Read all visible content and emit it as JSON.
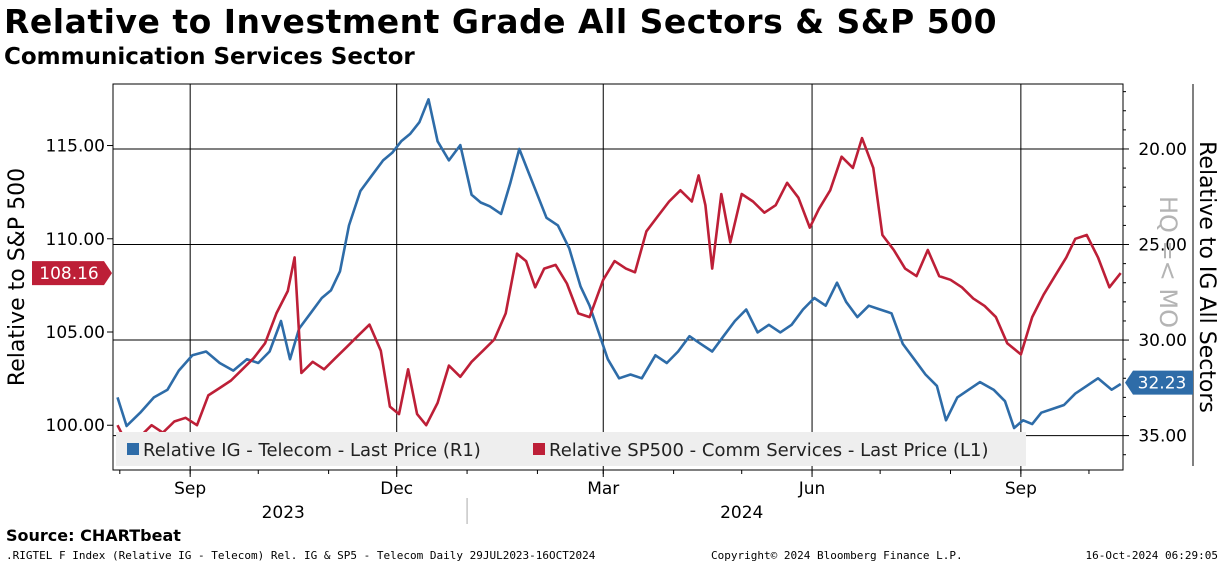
{
  "title": "Relative to Investment Grade All Sectors & S&P 500",
  "subtitle": "Communication Services Sector",
  "source": "Source: CHARTbeat",
  "footer": {
    "left": ".RIGTEL F Index (Relative IG - Telecom) Rel. IG & SP5 - Telecom  Daily 29JUL2023-16OCT2024",
    "center": "Copyright© 2024 Bloomberg Finance L.P.",
    "right": "16-Oct-2024 06:29:05"
  },
  "watermark": "HQ =< MO",
  "colors": {
    "blue": "#2e6ca8",
    "red": "#bd1f37",
    "legend_bg": "#eeeeee"
  },
  "chart_data": {
    "type": "line",
    "x_range": [
      "2023-07-29",
      "2024-10-16"
    ],
    "x_ticks": [
      {
        "label": "Sep",
        "date": "2023-09-01"
      },
      {
        "label": "Dec",
        "date": "2023-12-01"
      },
      {
        "label": "Mar",
        "date": "2024-03-01"
      },
      {
        "label": "Jun",
        "date": "2024-06-01"
      },
      {
        "label": "Sep",
        "date": "2024-09-01"
      }
    ],
    "x_years": [
      {
        "label": "2023",
        "date": "2023-10-12"
      },
      {
        "label": "2024",
        "date": "2024-05-01"
      }
    ],
    "year_divider": "2024-01-01",
    "grid": true,
    "left_axis": {
      "title": "Relative to S&P 500",
      "min": 97.6,
      "max": 118.3,
      "ticks": [
        "100.00",
        "105.00",
        "110.00",
        "115.00"
      ]
    },
    "right_axis": {
      "title": "Relative to IG All Sectors",
      "inverted": true,
      "min": 16.6,
      "max": 36.8,
      "ticks": [
        "20.00",
        "25.00",
        "30.00",
        "35.00"
      ]
    },
    "legend": {
      "position": "bottom-left"
    },
    "series": [
      {
        "name": "Relative IG - Telecom - Last Price (R1)",
        "axis": "right",
        "color": "#2e6ca8",
        "last_label": "32.23",
        "points": [
          [
            "2023-07-31",
            33.0
          ],
          [
            "2023-08-04",
            34.5
          ],
          [
            "2023-08-10",
            33.8
          ],
          [
            "2023-08-16",
            33.0
          ],
          [
            "2023-08-22",
            32.6
          ],
          [
            "2023-08-27",
            31.6
          ],
          [
            "2023-09-02",
            30.8
          ],
          [
            "2023-09-08",
            30.6
          ],
          [
            "2023-09-14",
            31.2
          ],
          [
            "2023-09-20",
            31.6
          ],
          [
            "2023-09-26",
            31.0
          ],
          [
            "2023-10-01",
            31.2
          ],
          [
            "2023-10-06",
            30.6
          ],
          [
            "2023-10-11",
            29.0
          ],
          [
            "2023-10-15",
            31.0
          ],
          [
            "2023-10-19",
            29.4
          ],
          [
            "2023-10-24",
            28.6
          ],
          [
            "2023-10-29",
            27.8
          ],
          [
            "2023-11-02",
            27.4
          ],
          [
            "2023-11-06",
            26.4
          ],
          [
            "2023-11-10",
            24.0
          ],
          [
            "2023-11-15",
            22.2
          ],
          [
            "2023-11-20",
            21.4
          ],
          [
            "2023-11-25",
            20.6
          ],
          [
            "2023-11-29",
            20.2
          ],
          [
            "2023-12-03",
            19.6
          ],
          [
            "2023-12-07",
            19.2
          ],
          [
            "2023-12-11",
            18.6
          ],
          [
            "2023-12-15",
            17.4
          ],
          [
            "2023-12-19",
            19.6
          ],
          [
            "2023-12-24",
            20.6
          ],
          [
            "2023-12-29",
            19.8
          ],
          [
            "2024-01-03",
            22.4
          ],
          [
            "2024-01-07",
            22.8
          ],
          [
            "2024-01-11",
            23.0
          ],
          [
            "2024-01-16",
            23.4
          ],
          [
            "2024-01-20",
            21.8
          ],
          [
            "2024-01-24",
            20.0
          ],
          [
            "2024-01-28",
            21.2
          ],
          [
            "2024-02-01",
            22.4
          ],
          [
            "2024-02-05",
            23.6
          ],
          [
            "2024-02-10",
            24.0
          ],
          [
            "2024-02-15",
            25.2
          ],
          [
            "2024-02-20",
            27.2
          ],
          [
            "2024-02-24",
            28.2
          ],
          [
            "2024-02-28",
            29.6
          ],
          [
            "2024-03-03",
            31.0
          ],
          [
            "2024-03-08",
            32.0
          ],
          [
            "2024-03-13",
            31.8
          ],
          [
            "2024-03-18",
            32.0
          ],
          [
            "2024-03-24",
            30.8
          ],
          [
            "2024-03-29",
            31.2
          ],
          [
            "2024-04-03",
            30.6
          ],
          [
            "2024-04-08",
            29.8
          ],
          [
            "2024-04-13",
            30.2
          ],
          [
            "2024-04-18",
            30.6
          ],
          [
            "2024-04-23",
            29.8
          ],
          [
            "2024-04-28",
            29.0
          ],
          [
            "2024-05-03",
            28.4
          ],
          [
            "2024-05-08",
            29.6
          ],
          [
            "2024-05-13",
            29.2
          ],
          [
            "2024-05-18",
            29.6
          ],
          [
            "2024-05-23",
            29.2
          ],
          [
            "2024-05-28",
            28.4
          ],
          [
            "2024-06-02",
            27.8
          ],
          [
            "2024-06-07",
            28.2
          ],
          [
            "2024-06-12",
            27.0
          ],
          [
            "2024-06-16",
            28.0
          ],
          [
            "2024-06-21",
            28.8
          ],
          [
            "2024-06-26",
            28.2
          ],
          [
            "2024-07-01",
            28.4
          ],
          [
            "2024-07-06",
            28.6
          ],
          [
            "2024-07-11",
            30.2
          ],
          [
            "2024-07-16",
            31.0
          ],
          [
            "2024-07-21",
            31.8
          ],
          [
            "2024-07-26",
            32.4
          ],
          [
            "2024-07-30",
            34.2
          ],
          [
            "2024-08-04",
            33.0
          ],
          [
            "2024-08-09",
            32.6
          ],
          [
            "2024-08-14",
            32.2
          ],
          [
            "2024-08-20",
            32.6
          ],
          [
            "2024-08-25",
            33.2
          ],
          [
            "2024-08-29",
            34.6
          ],
          [
            "2024-09-02",
            34.2
          ],
          [
            "2024-09-06",
            34.4
          ],
          [
            "2024-09-10",
            33.8
          ],
          [
            "2024-09-15",
            33.6
          ],
          [
            "2024-09-20",
            33.4
          ],
          [
            "2024-09-25",
            32.8
          ],
          [
            "2024-09-30",
            32.4
          ],
          [
            "2024-10-05",
            32.0
          ],
          [
            "2024-10-11",
            32.6
          ],
          [
            "2024-10-15",
            32.3
          ]
        ]
      },
      {
        "name": "Relative SP500 - Comm Services - Last Price (L1)",
        "axis": "left",
        "color": "#bd1f37",
        "last_label": "108.16",
        "points": [
          [
            "2023-07-31",
            100.0
          ],
          [
            "2023-08-05",
            98.8
          ],
          [
            "2023-08-10",
            99.4
          ],
          [
            "2023-08-15",
            100.0
          ],
          [
            "2023-08-20",
            99.6
          ],
          [
            "2023-08-25",
            100.2
          ],
          [
            "2023-08-30",
            100.4
          ],
          [
            "2023-09-04",
            100.0
          ],
          [
            "2023-09-09",
            101.6
          ],
          [
            "2023-09-14",
            102.0
          ],
          [
            "2023-09-19",
            102.4
          ],
          [
            "2023-09-24",
            103.0
          ],
          [
            "2023-09-29",
            103.6
          ],
          [
            "2023-10-04",
            104.4
          ],
          [
            "2023-10-09",
            106.0
          ],
          [
            "2023-10-14",
            107.2
          ],
          [
            "2023-10-17",
            109.0
          ],
          [
            "2023-10-20",
            102.8
          ],
          [
            "2023-10-25",
            103.4
          ],
          [
            "2023-10-30",
            103.0
          ],
          [
            "2023-11-04",
            103.6
          ],
          [
            "2023-11-09",
            104.2
          ],
          [
            "2023-11-14",
            104.8
          ],
          [
            "2023-11-19",
            105.4
          ],
          [
            "2023-11-24",
            104.0
          ],
          [
            "2023-11-28",
            101.0
          ],
          [
            "2023-12-02",
            100.6
          ],
          [
            "2023-12-06",
            103.0
          ],
          [
            "2023-12-10",
            100.6
          ],
          [
            "2023-12-14",
            100.0
          ],
          [
            "2023-12-19",
            101.2
          ],
          [
            "2023-12-24",
            103.2
          ],
          [
            "2023-12-29",
            102.6
          ],
          [
            "2024-01-03",
            103.4
          ],
          [
            "2024-01-08",
            104.0
          ],
          [
            "2024-01-13",
            104.6
          ],
          [
            "2024-01-18",
            106.0
          ],
          [
            "2024-01-23",
            109.2
          ],
          [
            "2024-01-27",
            108.8
          ],
          [
            "2024-01-31",
            107.4
          ],
          [
            "2024-02-04",
            108.4
          ],
          [
            "2024-02-09",
            108.6
          ],
          [
            "2024-02-14",
            107.6
          ],
          [
            "2024-02-19",
            106.0
          ],
          [
            "2024-02-24",
            105.8
          ],
          [
            "2024-03-01",
            107.8
          ],
          [
            "2024-03-06",
            108.8
          ],
          [
            "2024-03-11",
            108.4
          ],
          [
            "2024-03-15",
            108.2
          ],
          [
            "2024-03-20",
            110.4
          ],
          [
            "2024-03-25",
            111.2
          ],
          [
            "2024-03-30",
            112.0
          ],
          [
            "2024-04-04",
            112.6
          ],
          [
            "2024-04-09",
            112.0
          ],
          [
            "2024-04-12",
            113.4
          ],
          [
            "2024-04-15",
            111.8
          ],
          [
            "2024-04-18",
            108.4
          ],
          [
            "2024-04-22",
            112.4
          ],
          [
            "2024-04-26",
            109.8
          ],
          [
            "2024-05-01",
            112.4
          ],
          [
            "2024-05-06",
            112.0
          ],
          [
            "2024-05-11",
            111.4
          ],
          [
            "2024-05-16",
            111.8
          ],
          [
            "2024-05-21",
            113.0
          ],
          [
            "2024-05-26",
            112.2
          ],
          [
            "2024-05-31",
            110.6
          ],
          [
            "2024-06-04",
            111.6
          ],
          [
            "2024-06-09",
            112.6
          ],
          [
            "2024-06-14",
            114.4
          ],
          [
            "2024-06-19",
            113.8
          ],
          [
            "2024-06-23",
            115.4
          ],
          [
            "2024-06-28",
            113.8
          ],
          [
            "2024-07-02",
            110.2
          ],
          [
            "2024-07-07",
            109.4
          ],
          [
            "2024-07-12",
            108.4
          ],
          [
            "2024-07-17",
            108.0
          ],
          [
            "2024-07-22",
            109.4
          ],
          [
            "2024-07-27",
            108.0
          ],
          [
            "2024-08-01",
            107.8
          ],
          [
            "2024-08-06",
            107.4
          ],
          [
            "2024-08-11",
            106.8
          ],
          [
            "2024-08-16",
            106.4
          ],
          [
            "2024-08-21",
            105.8
          ],
          [
            "2024-08-26",
            104.4
          ],
          [
            "2024-09-01",
            103.8
          ],
          [
            "2024-09-06",
            105.8
          ],
          [
            "2024-09-11",
            107.0
          ],
          [
            "2024-09-16",
            108.0
          ],
          [
            "2024-09-21",
            109.0
          ],
          [
            "2024-09-25",
            110.0
          ],
          [
            "2024-09-30",
            110.2
          ],
          [
            "2024-10-05",
            109.0
          ],
          [
            "2024-10-10",
            107.4
          ],
          [
            "2024-10-15",
            108.16
          ]
        ]
      }
    ]
  }
}
